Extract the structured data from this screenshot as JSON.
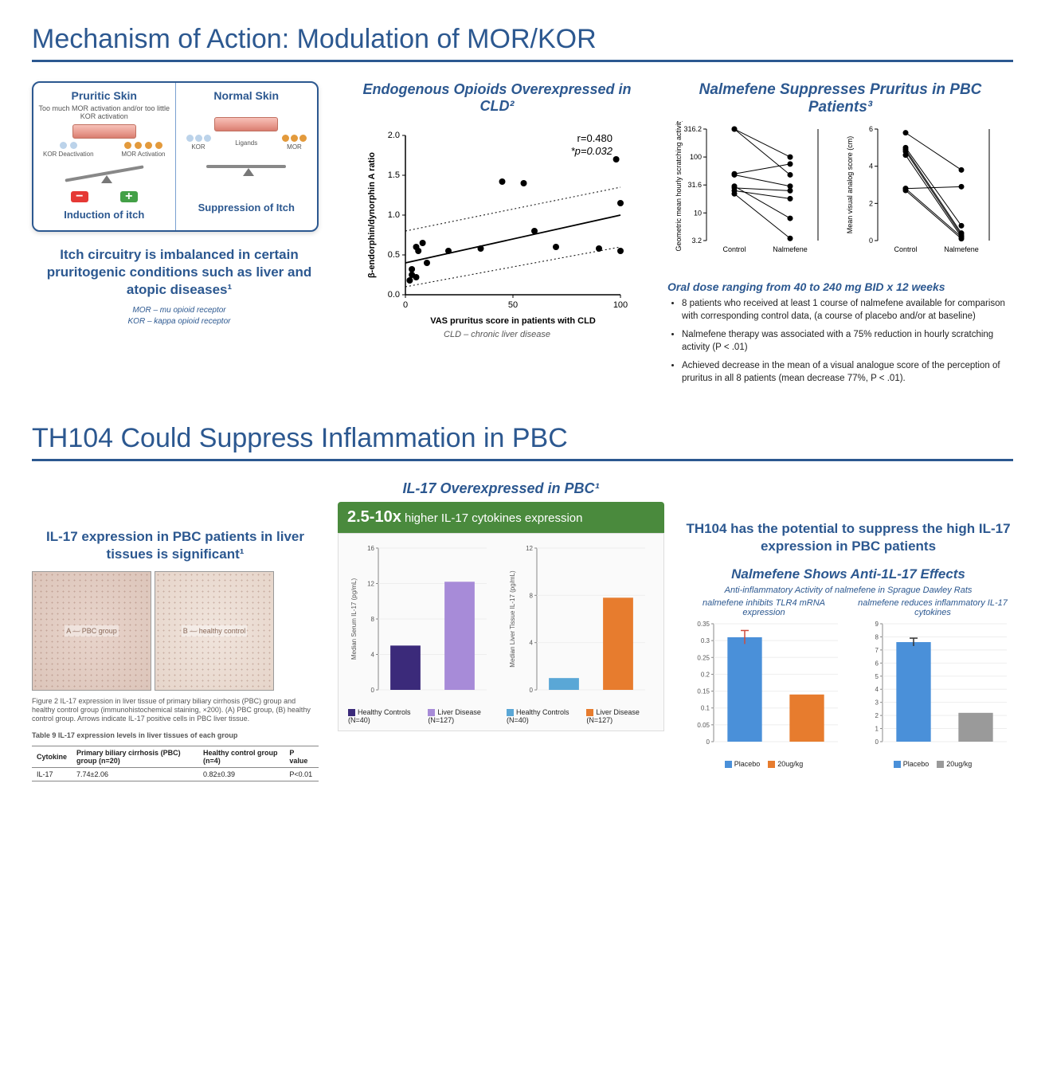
{
  "section1": {
    "title": "Mechanism of Action: Modulation of MOR/KOR",
    "panel": {
      "pruritic": {
        "title": "Pruritic Skin",
        "subtitle": "Too much MOR activation and/or too little KOR activation",
        "kor_label": "KOR Deactivation",
        "mor_label": "MOR Activation",
        "kor_color": "#bcd3ea",
        "mor_color": "#e39a3c",
        "foot": "Induction of itch"
      },
      "normal": {
        "title": "Normal Skin",
        "ligands_label": "Ligands",
        "kor_label": "KOR",
        "mor_label": "MOR",
        "kor_color": "#bcd3ea",
        "mor_color": "#e39a3c",
        "foot": "Suppression of Itch"
      }
    },
    "blurb": "Itch circuitry is imbalanced in certain pruritogenic conditions such as liver and atopic diseases¹",
    "defs": {
      "mor": "MOR – mu opioid receptor",
      "kor": "KOR – kappa opioid receptor"
    },
    "scatter": {
      "title": "Endogenous Opioids Overexpressed in CLD²",
      "r_label": "r=0.480",
      "p_label": "*p=0.032",
      "ylabel": "β-endorphin/dynorphin A ratio",
      "xlabel": "VAS pruritus score in patients with CLD",
      "footnote": "CLD – chronic liver disease",
      "xlim": [
        0,
        100
      ],
      "ylim": [
        0,
        2.0
      ],
      "yticks": [
        0,
        0.5,
        1.0,
        1.5,
        2.0
      ],
      "xticks": [
        0,
        50,
        100
      ],
      "point_color": "#000000",
      "line_color": "#000000",
      "ci_dash": "2,3",
      "points": [
        [
          2,
          0.18
        ],
        [
          3,
          0.25
        ],
        [
          3,
          0.32
        ],
        [
          5,
          0.22
        ],
        [
          5,
          0.6
        ],
        [
          6,
          0.55
        ],
        [
          8,
          0.65
        ],
        [
          10,
          0.4
        ],
        [
          20,
          0.55
        ],
        [
          35,
          0.58
        ],
        [
          45,
          1.42
        ],
        [
          55,
          1.4
        ],
        [
          60,
          0.8
        ],
        [
          70,
          0.6
        ],
        [
          90,
          0.58
        ],
        [
          100,
          0.55
        ],
        [
          100,
          1.15
        ],
        [
          98,
          1.7
        ]
      ],
      "fit": {
        "x0": 0,
        "y0": 0.4,
        "x1": 100,
        "y1": 1.0
      },
      "ci_upper": {
        "x0": 0,
        "y0": 0.8,
        "x1": 100,
        "y1": 1.35
      },
      "ci_lower": {
        "x0": 0,
        "y0": 0.1,
        "x1": 100,
        "y1": 0.6
      }
    },
    "nalmefene": {
      "title": "Nalmefene Suppresses Pruritus in PBC Patients³",
      "plot1_ylabel": "Geometric mean hourly scratching activity",
      "plot2_ylabel": "Mean visual analog score (cm)",
      "x_labels": [
        "Control",
        "Nalmefene"
      ],
      "plot1": {
        "yticks": [
          3.2,
          10.0,
          31.6,
          100.0,
          316.2
        ],
        "scale": "log",
        "pairs": [
          [
            316,
            100
          ],
          [
            316,
            48
          ],
          [
            50,
            75
          ],
          [
            48,
            30
          ],
          [
            30,
            8
          ],
          [
            28,
            25
          ],
          [
            25,
            18
          ],
          [
            22,
            3.5
          ]
        ]
      },
      "plot2": {
        "yticks": [
          0,
          2,
          4,
          6
        ],
        "pairs": [
          [
            5.8,
            3.8
          ],
          [
            5.0,
            0.8
          ],
          [
            4.9,
            0.4
          ],
          [
            4.8,
            0.3
          ],
          [
            4.6,
            0.2
          ],
          [
            2.8,
            2.9
          ],
          [
            2.8,
            0.2
          ],
          [
            2.7,
            0.1
          ]
        ]
      },
      "dose": "Oral dose ranging from 40 to 240 mg BID x 12 weeks",
      "bullets": [
        "8 patients who received at least 1 course of nalmefene available for comparison with corresponding control data, (a course of placebo and/or at baseline)",
        "Nalmefene therapy was associated with a 75% reduction in hourly scratching activity (P < .01)",
        "Achieved decrease in the mean of a visual analogue score of the perception of pruritus in all 8 patients (mean decrease 77%, P < .01)."
      ]
    }
  },
  "section2": {
    "title": "TH104 Could Suppress Inflammation in PBC",
    "left": {
      "heading": "IL-17 expression in PBC patients in liver tissues is significant¹",
      "tissue_a": "A — PBC group",
      "tissue_b": "B — healthy control",
      "fig_caption": "Figure 2 IL-17 expression in liver tissue of primary biliary cirrhosis (PBC) group and healthy control group (immunohistochemical staining, ×200). (A) PBC group, (B) healthy control group. Arrows indicate IL-17 positive cells in PBC liver tissue.",
      "table": {
        "caption": "Table 9 IL-17 expression levels in liver tissues of each group",
        "headers": [
          "Cytokine",
          "Primary biliary cirrhosis (PBC) group (n=20)",
          "Healthy control group (n=4)",
          "P value"
        ],
        "row": [
          "IL-17",
          "7.74±2.06",
          "0.82±0.39",
          "P<0.01"
        ]
      }
    },
    "center": {
      "title": "IL-17 Overexpressed in PBC¹",
      "banner_bold": "2.5-10x",
      "banner_rest": " higher IL-17 cytokines expression",
      "chart1": {
        "ylabel": "Median Serum IL-17 (pg/mL)",
        "ylim": [
          0,
          16
        ],
        "yticks": [
          0,
          4,
          8,
          12,
          16
        ],
        "bars": [
          {
            "label": "Healthy Controls (N=40)",
            "value": 5,
            "color": "#3b2a7a"
          },
          {
            "label": "Liver Disease (N=127)",
            "value": 12.2,
            "color": "#a78bd8"
          }
        ]
      },
      "chart2": {
        "ylabel": "Median Liver Tissue IL-17 (pg/mL)",
        "ylim": [
          0,
          12
        ],
        "yticks": [
          0,
          4,
          8,
          12
        ],
        "bars": [
          {
            "label": "Healthy Controls (N=40)",
            "value": 1,
            "color": "#5aa7d6"
          },
          {
            "label": "Liver Disease (N=127)",
            "value": 7.8,
            "color": "#e77c2e"
          }
        ]
      }
    },
    "right": {
      "heading": "TH104 has the potential to suppress the high IL-17 expression in PBC patients",
      "subtitle": "Nalmefene Shows Anti-1L-17 Effects",
      "supertitle": "Anti-inflammatory Activity of nalmefene in Sprague Dawley Rats",
      "chart1": {
        "title": "nalmefene inhibits TLR4 mRNA expression",
        "ylim": [
          0,
          0.35
        ],
        "yticks": [
          0,
          0.05,
          0.1,
          0.15,
          0.2,
          0.25,
          0.3,
          0.35
        ],
        "bars": [
          {
            "label": "Placebo",
            "value": 0.31,
            "color": "#4a90d9",
            "err": 0.02,
            "errcolor": "#d04a3a"
          },
          {
            "label": "20ug/kg",
            "value": 0.14,
            "color": "#e77c2e",
            "err": 0
          }
        ]
      },
      "chart2": {
        "title": "nalmefene reduces inflammatory IL-17 cytokines",
        "ylim": [
          0,
          9
        ],
        "yticks": [
          0,
          1,
          2,
          3,
          4,
          5,
          6,
          7,
          8,
          9
        ],
        "bars": [
          {
            "label": "Placebo",
            "value": 7.6,
            "color": "#4a90d9",
            "err": 0.3,
            "errcolor": "#333333"
          },
          {
            "label": "20ug/kg",
            "value": 2.2,
            "color": "#9a9a9a",
            "err": 0
          }
        ]
      },
      "legend": [
        "Placebo",
        "20ug/kg"
      ],
      "legend_colors": [
        "#4a90d9",
        "#e77c2e"
      ],
      "legend_colors2": [
        "#4a90d9",
        "#9a9a9a"
      ]
    }
  }
}
